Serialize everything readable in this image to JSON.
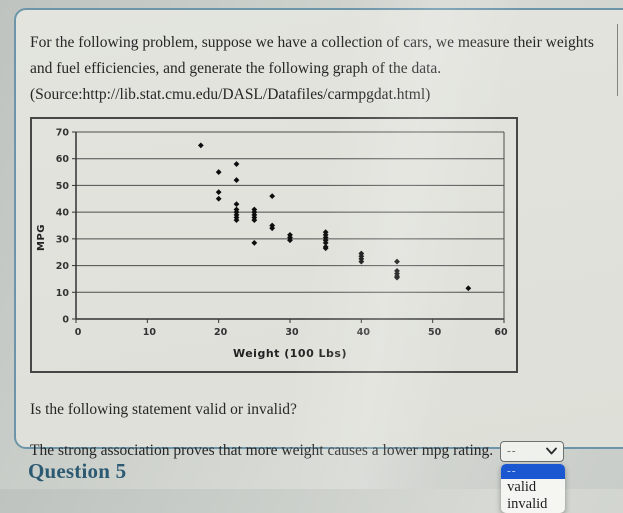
{
  "card": {
    "intro": "For the following problem, suppose we have a collection of cars, we measure their weights and fuel efficiencies, and generate the following graph of the data.",
    "source": "(Source:http://lib.stat.cmu.edu/DASL/Datafiles/carmpgdat.html)",
    "prompt": "Is the following statement valid or invalid?",
    "statement": "The strong association proves that more weight causes a lower mpg rating."
  },
  "dropdown": {
    "selected": "--",
    "options": [
      "--",
      "valid",
      "invalid"
    ],
    "highlight_color": "#1a57d0"
  },
  "footer": {
    "question_label": "Question 5"
  },
  "chart_data": {
    "type": "scatter",
    "xlabel": "Weight (100 Lbs)",
    "ylabel": "MPG",
    "xlim": [
      0,
      60
    ],
    "ylim": [
      0,
      70
    ],
    "xticks": [
      0,
      10,
      20,
      30,
      40,
      50,
      60
    ],
    "yticks": [
      0,
      10,
      20,
      30,
      40,
      50,
      60,
      70
    ],
    "grid": "horizontal",
    "legend": "none",
    "marker": "diamond",
    "marker_color": "#0d0d0d",
    "points": [
      [
        17.5,
        65
      ],
      [
        20,
        55
      ],
      [
        20,
        47.5
      ],
      [
        20,
        45
      ],
      [
        22.5,
        58
      ],
      [
        22.5,
        52
      ],
      [
        22.5,
        43
      ],
      [
        22.5,
        41
      ],
      [
        22.5,
        40
      ],
      [
        22.5,
        39
      ],
      [
        22.5,
        38
      ],
      [
        22.5,
        37
      ],
      [
        25,
        41
      ],
      [
        25,
        40
      ],
      [
        25,
        39
      ],
      [
        25,
        38
      ],
      [
        25,
        37
      ],
      [
        25,
        28.5
      ],
      [
        27.5,
        46
      ],
      [
        27.5,
        35
      ],
      [
        27.5,
        34
      ],
      [
        30,
        31.5
      ],
      [
        30,
        30.5
      ],
      [
        30,
        29.5
      ],
      [
        35,
        32.5
      ],
      [
        35,
        31.5
      ],
      [
        35,
        30.5
      ],
      [
        35,
        29.5
      ],
      [
        35,
        28.5
      ],
      [
        35,
        27
      ],
      [
        35,
        26.5
      ],
      [
        40,
        24.5
      ],
      [
        40,
        23.5
      ],
      [
        40,
        22.5
      ],
      [
        40,
        21.5
      ],
      [
        45,
        21.5
      ],
      [
        45,
        18
      ],
      [
        45,
        17
      ],
      [
        45,
        16
      ],
      [
        45,
        15.5
      ],
      [
        55,
        11.5
      ]
    ]
  }
}
